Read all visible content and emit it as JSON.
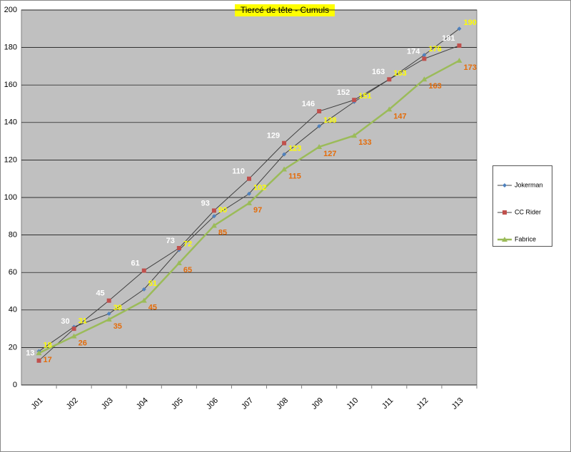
{
  "chart_data": {
    "type": "line",
    "title": "Tiercé de tête - Cumuls",
    "categories": [
      "J01",
      "J02",
      "J03",
      "J04",
      "J05",
      "J06",
      "J07",
      "J08",
      "J09",
      "J10",
      "J11",
      "J12",
      "J13"
    ],
    "series": [
      {
        "name": "Jokerman",
        "color": "#4f81bd",
        "line_color": "#404040",
        "line_width": 1,
        "marker": "diamond",
        "label_color": "#ffff00",
        "values": [
          18,
          31,
          38,
          51,
          72,
          90,
          102,
          123,
          138,
          151,
          163,
          176,
          190
        ]
      },
      {
        "name": "CC Rider",
        "color": "#c0504d",
        "line_color": "#404040",
        "line_width": 1,
        "marker": "square",
        "label_color": "#ffffff",
        "values": [
          13,
          30,
          45,
          61,
          73,
          93,
          110,
          129,
          146,
          152,
          163,
          174,
          181
        ]
      },
      {
        "name": "Fabrice",
        "color": "#9bbb59",
        "line_color": "#9bbb59",
        "line_width": 2.5,
        "marker": "triangle",
        "label_color": "#e46c0a",
        "values": [
          17,
          26,
          35,
          45,
          65,
          85,
          97,
          115,
          127,
          133,
          147,
          163,
          173
        ]
      }
    ],
    "ylim": [
      0,
      200
    ],
    "yticks": [
      0,
      20,
      40,
      60,
      80,
      100,
      120,
      140,
      160,
      180,
      200
    ],
    "grid": true,
    "legend": "right"
  }
}
